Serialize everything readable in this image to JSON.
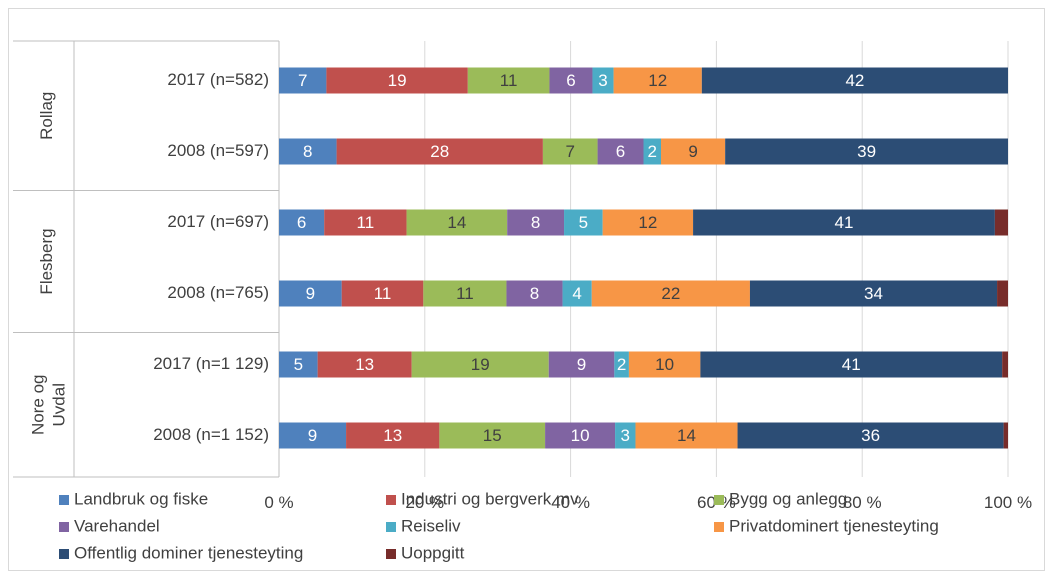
{
  "chart_data": {
    "type": "bar",
    "orientation": "horizontal",
    "stacked": true,
    "title": "",
    "xlabel": "",
    "ylabel": "",
    "xlim": [
      0,
      100
    ],
    "x_ticks": [
      "0 %",
      "20 %",
      "40 %",
      "60 %",
      "80 %",
      "100 %"
    ],
    "groups": [
      {
        "name": "Rollag",
        "categories": [
          "2017 (n=582)",
          "2008 (n=597)"
        ]
      },
      {
        "name": "Flesberg",
        "categories": [
          "2017 (n=697)",
          "2008 (n=765)"
        ]
      },
      {
        "name": "Nore og Uvdal",
        "categories": [
          "2017 (n=1 129)",
          "2008 (n=1 152)"
        ]
      }
    ],
    "categories": [
      "2017 (n=582)",
      "2008 (n=597)",
      "2017 (n=697)",
      "2008 (n=765)",
      "2017 (n=1 129)",
      "2008 (n=1 152)"
    ],
    "series": [
      {
        "name": "Landbruk og fiske",
        "color": "#4f81bd",
        "values": [
          6.5,
          7.9,
          6.2,
          8.6,
          5.3,
          9.2
        ]
      },
      {
        "name": "Industri og bergverk mv",
        "color": "#c0504d",
        "values": [
          19.4,
          28.3,
          11.3,
          11.2,
          12.9,
          12.8
        ]
      },
      {
        "name": "Bygg og anlegg",
        "color": "#9bbb59",
        "values": [
          11.2,
          7.5,
          13.8,
          11.4,
          18.8,
          14.5
        ]
      },
      {
        "name": "Varehandel",
        "color": "#8064a2",
        "values": [
          5.9,
          6.3,
          7.8,
          7.7,
          9.0,
          9.6
        ]
      },
      {
        "name": "Reiseliv",
        "color": "#4bacc6",
        "values": [
          2.9,
          2.4,
          5.3,
          4.0,
          2.0,
          2.8
        ]
      },
      {
        "name": "Privatdominert tjenesteyting",
        "color": "#f79646",
        "values": [
          12.1,
          8.8,
          12.4,
          21.7,
          9.8,
          14.0
        ]
      },
      {
        "name": "Offentlig dominer tjenesteyting",
        "color": "#2c4d75",
        "values": [
          42.0,
          38.8,
          41.4,
          33.9,
          41.4,
          36.5
        ]
      },
      {
        "name": "Uoppgitt",
        "color": "#772c2a",
        "values": [
          0.0,
          0.0,
          1.8,
          1.5,
          0.8,
          0.6
        ]
      }
    ],
    "data_labels": [
      [
        "7",
        "19",
        "11",
        "6",
        "3",
        "12",
        "42",
        ""
      ],
      [
        "8",
        "28",
        "7",
        "6",
        "2",
        "9",
        "39",
        ""
      ],
      [
        "6",
        "11",
        "14",
        "8",
        "5",
        "12",
        "41",
        ""
      ],
      [
        "9",
        "11",
        "11",
        "8",
        "4",
        "22",
        "34",
        ""
      ],
      [
        "5",
        "13",
        "19",
        "9",
        "2",
        "10",
        "41",
        ""
      ],
      [
        "9",
        "13",
        "15",
        "10",
        "3",
        "14",
        "36",
        ""
      ]
    ],
    "grid": "vertical",
    "legend_position": "bottom"
  }
}
